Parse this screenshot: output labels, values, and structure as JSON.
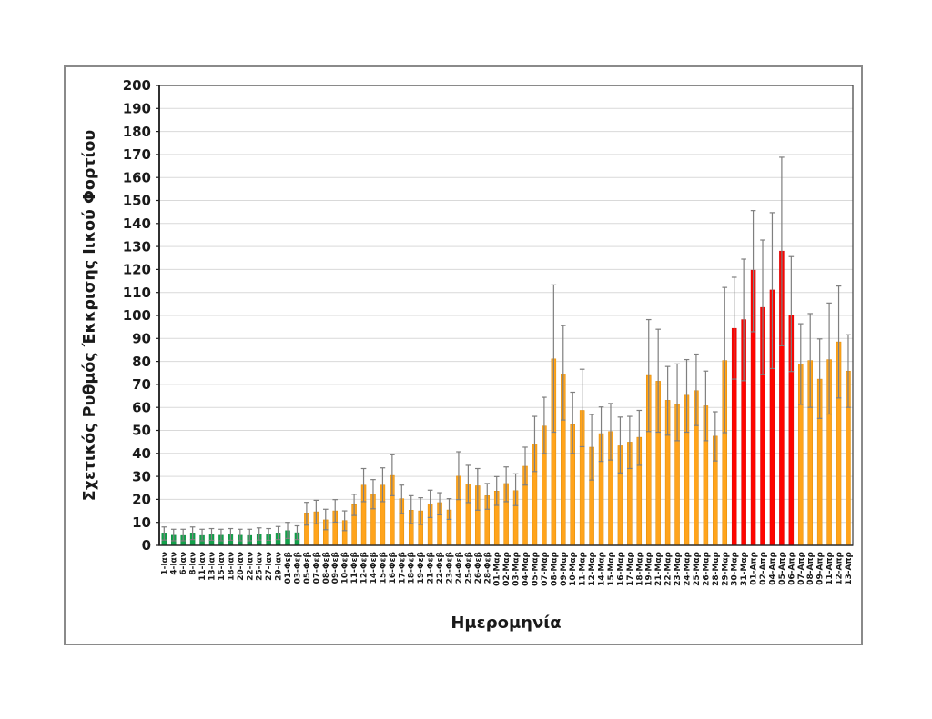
{
  "chart_data": {
    "type": "bar",
    "title": "",
    "xlabel": "Ημερομηνία",
    "ylabel": "Σχετικός Ρυθμός Έκκρισης Ιικού Φορτίου",
    "ylim": [
      0,
      200
    ],
    "ytick_step": 10,
    "grid": true,
    "legend": "none",
    "error_bars": true,
    "colors": {
      "green": "#12A24B",
      "orange": "#FFA41C",
      "red": "#FE0400",
      "green_edge": "#0e8a3e",
      "orange_edge": "#e08900",
      "red_edge": "#d40000",
      "error": "#7f7f7f",
      "grid": "#d9d9d9",
      "axis": "#4a4a4a",
      "text": "#1a1a1a"
    },
    "bars": [
      {
        "label": "1-Ιαν",
        "v": 5.4,
        "lo": 2.3,
        "hi": 8.0,
        "c": "green"
      },
      {
        "label": "4-Ιαν",
        "v": 4.4,
        "lo": 2.0,
        "hi": 7.0,
        "c": "green"
      },
      {
        "label": "6-Ιαν",
        "v": 4.3,
        "lo": 2.0,
        "hi": 7.0,
        "c": "green"
      },
      {
        "label": "8-Ιαν",
        "v": 5.4,
        "lo": 2.5,
        "hi": 8.0,
        "c": "green"
      },
      {
        "label": "11-Ιαν",
        "v": 4.3,
        "lo": 2.0,
        "hi": 7.0,
        "c": "green"
      },
      {
        "label": "13-Ιαν",
        "v": 4.6,
        "lo": 2.2,
        "hi": 7.3,
        "c": "green"
      },
      {
        "label": "15-Ιαν",
        "v": 4.4,
        "lo": 2.0,
        "hi": 7.0,
        "c": "green"
      },
      {
        "label": "18-Ιαν",
        "v": 4.6,
        "lo": 2.2,
        "hi": 7.3,
        "c": "green"
      },
      {
        "label": "20-Ιαν",
        "v": 4.4,
        "lo": 2.0,
        "hi": 7.0,
        "c": "green"
      },
      {
        "label": "22-Ιαν",
        "v": 4.3,
        "lo": 2.0,
        "hi": 7.0,
        "c": "green"
      },
      {
        "label": "25-Ιαν",
        "v": 4.9,
        "lo": 2.3,
        "hi": 7.6,
        "c": "green"
      },
      {
        "label": "27-Ιαν",
        "v": 4.6,
        "lo": 2.2,
        "hi": 7.3,
        "c": "green"
      },
      {
        "label": "29-Ιαν",
        "v": 5.4,
        "lo": 2.5,
        "hi": 8.2,
        "c": "green"
      },
      {
        "label": "01-Φεβ",
        "v": 6.4,
        "lo": 3.0,
        "hi": 10.0,
        "c": "green"
      },
      {
        "label": "03-Φεβ",
        "v": 5.5,
        "lo": 2.5,
        "hi": 8.5,
        "c": "green"
      },
      {
        "label": "05-Φεβ",
        "v": 14.1,
        "lo": 8.8,
        "hi": 18.7,
        "c": "orange"
      },
      {
        "label": "07-Φεβ",
        "v": 14.6,
        "lo": 9.4,
        "hi": 19.6,
        "c": "orange"
      },
      {
        "label": "08-Φεβ",
        "v": 11.1,
        "lo": 6.8,
        "hi": 15.7,
        "c": "orange"
      },
      {
        "label": "09-Φεβ",
        "v": 15.0,
        "lo": 10.1,
        "hi": 19.9,
        "c": "orange"
      },
      {
        "label": "10-Φεβ",
        "v": 10.8,
        "lo": 6.4,
        "hi": 15.0,
        "c": "orange"
      },
      {
        "label": "11-Φεβ",
        "v": 17.7,
        "lo": 13.0,
        "hi": 22.2,
        "c": "orange"
      },
      {
        "label": "12-Φεβ",
        "v": 26.2,
        "lo": 19.0,
        "hi": 33.4,
        "c": "orange"
      },
      {
        "label": "14-Φεβ",
        "v": 22.2,
        "lo": 15.9,
        "hi": 28.6,
        "c": "orange"
      },
      {
        "label": "15-Φεβ",
        "v": 26.2,
        "lo": 19.0,
        "hi": 33.7,
        "c": "orange"
      },
      {
        "label": "16-Φεβ",
        "v": 30.4,
        "lo": 21.6,
        "hi": 39.4,
        "c": "orange"
      },
      {
        "label": "17-Φεβ",
        "v": 20.3,
        "lo": 13.9,
        "hi": 26.2,
        "c": "orange"
      },
      {
        "label": "18-Φεβ",
        "v": 15.3,
        "lo": 9.5,
        "hi": 21.6,
        "c": "orange"
      },
      {
        "label": "19-Φεβ",
        "v": 15.0,
        "lo": 9.1,
        "hi": 20.7,
        "c": "orange"
      },
      {
        "label": "21-Φεβ",
        "v": 18.0,
        "lo": 12.1,
        "hi": 24.0,
        "c": "orange"
      },
      {
        "label": "22-Φεβ",
        "v": 18.6,
        "lo": 13.3,
        "hi": 22.9,
        "c": "orange"
      },
      {
        "label": "23-Φεβ",
        "v": 15.4,
        "lo": 11.3,
        "hi": 20.3,
        "c": "orange"
      },
      {
        "label": "24-Φεβ",
        "v": 30.1,
        "lo": 19.9,
        "hi": 40.7,
        "c": "orange"
      },
      {
        "label": "25-Φεβ",
        "v": 26.6,
        "lo": 18.6,
        "hi": 34.8,
        "c": "orange"
      },
      {
        "label": "26-Φεβ",
        "v": 25.9,
        "lo": 15.3,
        "hi": 33.4,
        "c": "orange"
      },
      {
        "label": "28-Φεβ",
        "v": 21.6,
        "lo": 15.7,
        "hi": 26.9,
        "c": "orange"
      },
      {
        "label": "01-Μαρ",
        "v": 23.6,
        "lo": 17.4,
        "hi": 29.9,
        "c": "orange"
      },
      {
        "label": "02-Μαρ",
        "v": 26.9,
        "lo": 19.0,
        "hi": 34.1,
        "c": "orange"
      },
      {
        "label": "03-Μαρ",
        "v": 23.8,
        "lo": 17.3,
        "hi": 31.1,
        "c": "orange"
      },
      {
        "label": "04-Μαρ",
        "v": 34.4,
        "lo": 26.2,
        "hi": 42.7,
        "c": "orange"
      },
      {
        "label": "05-Μαρ",
        "v": 44.0,
        "lo": 32.1,
        "hi": 56.1,
        "c": "orange"
      },
      {
        "label": "07-Μαρ",
        "v": 51.9,
        "lo": 40.0,
        "hi": 64.4,
        "c": "orange"
      },
      {
        "label": "08-Μαρ",
        "v": 81.1,
        "lo": 49.2,
        "hi": 113.3,
        "c": "orange"
      },
      {
        "label": "09-Μαρ",
        "v": 74.5,
        "lo": 54.5,
        "hi": 95.6,
        "c": "orange"
      },
      {
        "label": "10-Μαρ",
        "v": 52.5,
        "lo": 40.0,
        "hi": 66.6,
        "c": "orange"
      },
      {
        "label": "11-Μαρ",
        "v": 58.7,
        "lo": 42.9,
        "hi": 76.6,
        "c": "orange"
      },
      {
        "label": "12-Μαρ",
        "v": 42.7,
        "lo": 28.4,
        "hi": 56.9,
        "c": "orange"
      },
      {
        "label": "14-Μαρ",
        "v": 48.6,
        "lo": 36.5,
        "hi": 60.2,
        "c": "orange"
      },
      {
        "label": "15-Μαρ",
        "v": 49.5,
        "lo": 37.1,
        "hi": 61.7,
        "c": "orange"
      },
      {
        "label": "16-Μαρ",
        "v": 43.3,
        "lo": 31.5,
        "hi": 55.8,
        "c": "orange"
      },
      {
        "label": "17-Μαρ",
        "v": 44.9,
        "lo": 33.4,
        "hi": 56.1,
        "c": "orange"
      },
      {
        "label": "18-Μαρ",
        "v": 47.0,
        "lo": 34.8,
        "hi": 58.7,
        "c": "orange"
      },
      {
        "label": "19-Μαρ",
        "v": 73.9,
        "lo": 49.5,
        "hi": 98.2,
        "c": "orange"
      },
      {
        "label": "21-Μαρ",
        "v": 71.4,
        "lo": 49.2,
        "hi": 94.0,
        "c": "orange"
      },
      {
        "label": "22-Μαρ",
        "v": 63.1,
        "lo": 47.9,
        "hi": 77.8,
        "c": "orange"
      },
      {
        "label": "23-Μαρ",
        "v": 61.3,
        "lo": 45.5,
        "hi": 78.9,
        "c": "orange"
      },
      {
        "label": "24-Μαρ",
        "v": 65.3,
        "lo": 49.2,
        "hi": 80.8,
        "c": "orange"
      },
      {
        "label": "25-Μαρ",
        "v": 67.3,
        "lo": 52.1,
        "hi": 83.2,
        "c": "orange"
      },
      {
        "label": "26-Μαρ",
        "v": 60.7,
        "lo": 45.5,
        "hi": 75.8,
        "c": "orange"
      },
      {
        "label": "28-Μαρ",
        "v": 47.5,
        "lo": 36.7,
        "hi": 58.1,
        "c": "orange"
      },
      {
        "label": "29-Μαρ",
        "v": 80.4,
        "lo": 49.0,
        "hi": 112.2,
        "c": "orange"
      },
      {
        "label": "30-Μαρ",
        "v": 94.4,
        "lo": 72.3,
        "hi": 116.6,
        "c": "red"
      },
      {
        "label": "31-Μαρ",
        "v": 98.2,
        "lo": 71.6,
        "hi": 124.5,
        "c": "red"
      },
      {
        "label": "01-Απρ",
        "v": 119.7,
        "lo": 92.9,
        "hi": 145.6,
        "c": "red"
      },
      {
        "label": "02-Απρ",
        "v": 103.5,
        "lo": 74.2,
        "hi": 132.8,
        "c": "red"
      },
      {
        "label": "04-Απρ",
        "v": 111.1,
        "lo": 76.9,
        "hi": 144.7,
        "c": "red"
      },
      {
        "label": "05-Απρ",
        "v": 128.0,
        "lo": 86.8,
        "hi": 168.8,
        "c": "red"
      },
      {
        "label": "06-Απρ",
        "v": 100.2,
        "lo": 75.6,
        "hi": 125.6,
        "c": "red"
      },
      {
        "label": "07-Απρ",
        "v": 78.9,
        "lo": 61.3,
        "hi": 96.4,
        "c": "orange"
      },
      {
        "label": "08-Απρ",
        "v": 80.4,
        "lo": 60.0,
        "hi": 100.8,
        "c": "orange"
      },
      {
        "label": "09-Απρ",
        "v": 72.3,
        "lo": 55.2,
        "hi": 89.8,
        "c": "orange"
      },
      {
        "label": "11-Απρ",
        "v": 80.8,
        "lo": 57.1,
        "hi": 105.4,
        "c": "orange"
      },
      {
        "label": "12-Απρ",
        "v": 88.5,
        "lo": 64.1,
        "hi": 112.8,
        "c": "orange"
      },
      {
        "label": "13-Απρ",
        "v": 75.8,
        "lo": 60.0,
        "hi": 91.6,
        "c": "orange"
      }
    ]
  }
}
